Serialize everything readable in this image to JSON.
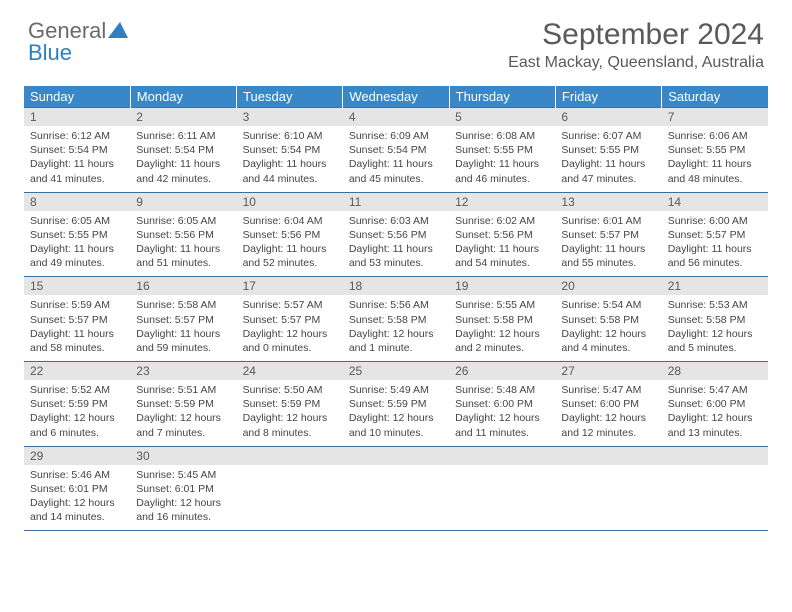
{
  "logo": {
    "text1": "General",
    "text2": "Blue"
  },
  "title": "September 2024",
  "location": "East Mackay, Queensland, Australia",
  "header_bg": "#3a87c8",
  "daynum_bg": "#e5e5e5",
  "border_color": "#3a6fa0",
  "dow": [
    "Sunday",
    "Monday",
    "Tuesday",
    "Wednesday",
    "Thursday",
    "Friday",
    "Saturday"
  ],
  "weeks": [
    [
      {
        "n": "1",
        "sr": "6:12 AM",
        "ss": "5:54 PM",
        "dl": "11 hours and 41 minutes."
      },
      {
        "n": "2",
        "sr": "6:11 AM",
        "ss": "5:54 PM",
        "dl": "11 hours and 42 minutes."
      },
      {
        "n": "3",
        "sr": "6:10 AM",
        "ss": "5:54 PM",
        "dl": "11 hours and 44 minutes."
      },
      {
        "n": "4",
        "sr": "6:09 AM",
        "ss": "5:54 PM",
        "dl": "11 hours and 45 minutes."
      },
      {
        "n": "5",
        "sr": "6:08 AM",
        "ss": "5:55 PM",
        "dl": "11 hours and 46 minutes."
      },
      {
        "n": "6",
        "sr": "6:07 AM",
        "ss": "5:55 PM",
        "dl": "11 hours and 47 minutes."
      },
      {
        "n": "7",
        "sr": "6:06 AM",
        "ss": "5:55 PM",
        "dl": "11 hours and 48 minutes."
      }
    ],
    [
      {
        "n": "8",
        "sr": "6:05 AM",
        "ss": "5:55 PM",
        "dl": "11 hours and 49 minutes."
      },
      {
        "n": "9",
        "sr": "6:05 AM",
        "ss": "5:56 PM",
        "dl": "11 hours and 51 minutes."
      },
      {
        "n": "10",
        "sr": "6:04 AM",
        "ss": "5:56 PM",
        "dl": "11 hours and 52 minutes."
      },
      {
        "n": "11",
        "sr": "6:03 AM",
        "ss": "5:56 PM",
        "dl": "11 hours and 53 minutes."
      },
      {
        "n": "12",
        "sr": "6:02 AM",
        "ss": "5:56 PM",
        "dl": "11 hours and 54 minutes."
      },
      {
        "n": "13",
        "sr": "6:01 AM",
        "ss": "5:57 PM",
        "dl": "11 hours and 55 minutes."
      },
      {
        "n": "14",
        "sr": "6:00 AM",
        "ss": "5:57 PM",
        "dl": "11 hours and 56 minutes."
      }
    ],
    [
      {
        "n": "15",
        "sr": "5:59 AM",
        "ss": "5:57 PM",
        "dl": "11 hours and 58 minutes."
      },
      {
        "n": "16",
        "sr": "5:58 AM",
        "ss": "5:57 PM",
        "dl": "11 hours and 59 minutes."
      },
      {
        "n": "17",
        "sr": "5:57 AM",
        "ss": "5:57 PM",
        "dl": "12 hours and 0 minutes."
      },
      {
        "n": "18",
        "sr": "5:56 AM",
        "ss": "5:58 PM",
        "dl": "12 hours and 1 minute."
      },
      {
        "n": "19",
        "sr": "5:55 AM",
        "ss": "5:58 PM",
        "dl": "12 hours and 2 minutes."
      },
      {
        "n": "20",
        "sr": "5:54 AM",
        "ss": "5:58 PM",
        "dl": "12 hours and 4 minutes."
      },
      {
        "n": "21",
        "sr": "5:53 AM",
        "ss": "5:58 PM",
        "dl": "12 hours and 5 minutes."
      }
    ],
    [
      {
        "n": "22",
        "sr": "5:52 AM",
        "ss": "5:59 PM",
        "dl": "12 hours and 6 minutes."
      },
      {
        "n": "23",
        "sr": "5:51 AM",
        "ss": "5:59 PM",
        "dl": "12 hours and 7 minutes."
      },
      {
        "n": "24",
        "sr": "5:50 AM",
        "ss": "5:59 PM",
        "dl": "12 hours and 8 minutes."
      },
      {
        "n": "25",
        "sr": "5:49 AM",
        "ss": "5:59 PM",
        "dl": "12 hours and 10 minutes."
      },
      {
        "n": "26",
        "sr": "5:48 AM",
        "ss": "6:00 PM",
        "dl": "12 hours and 11 minutes."
      },
      {
        "n": "27",
        "sr": "5:47 AM",
        "ss": "6:00 PM",
        "dl": "12 hours and 12 minutes."
      },
      {
        "n": "28",
        "sr": "5:47 AM",
        "ss": "6:00 PM",
        "dl": "12 hours and 13 minutes."
      }
    ],
    [
      {
        "n": "29",
        "sr": "5:46 AM",
        "ss": "6:01 PM",
        "dl": "12 hours and 14 minutes."
      },
      {
        "n": "30",
        "sr": "5:45 AM",
        "ss": "6:01 PM",
        "dl": "12 hours and 16 minutes."
      },
      null,
      null,
      null,
      null,
      null
    ]
  ],
  "labels": {
    "sunrise": "Sunrise: ",
    "sunset": "Sunset: ",
    "daylight": "Daylight: "
  }
}
